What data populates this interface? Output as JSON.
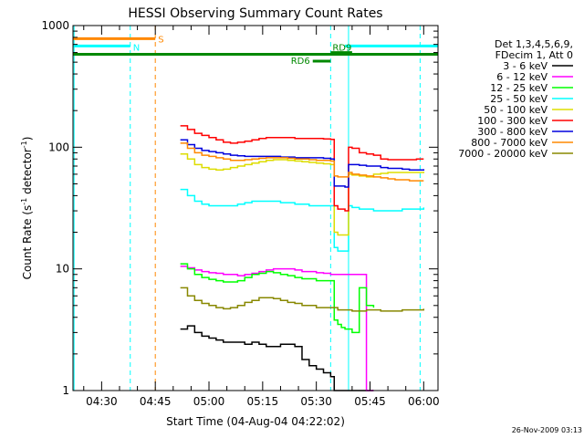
{
  "chart_data": {
    "type": "line",
    "title": "HESSI Observing Summary Count Rates",
    "xlabel": "Start Time (04-Aug-04 04:22:02)",
    "ylabel_main": "Count Rate (s",
    "ylabel_sup1": "-1",
    "ylabel_mid": " detector",
    "ylabel_sup2": "-1",
    "ylabel_end": ")",
    "ylim": [
      1,
      1000
    ],
    "yscale": "log",
    "xlim_min": [
      0,
      102
    ],
    "xtick_labels": [
      "04:30",
      "04:45",
      "05:00",
      "05:15",
      "05:30",
      "05:45",
      "06:00"
    ],
    "xtick_minutes": [
      8,
      23,
      38,
      53,
      68,
      83,
      98
    ],
    "ytick_labels": [
      "1",
      "10",
      "100",
      "1000"
    ],
    "ytick_values": [
      1,
      10,
      100,
      1000
    ],
    "timestamp": "26-Nov-2009 03:13",
    "legend_header": [
      "Det 1,3,4,5,6,9,",
      "FDecim 1, Att 0"
    ],
    "series": [
      {
        "name": "3 - 6 keV",
        "color": "#000000",
        "x": [
          30,
          32,
          34,
          36,
          38,
          40,
          42,
          44,
          46,
          48,
          50,
          52,
          54,
          56,
          58,
          60,
          62,
          64,
          66,
          68,
          70,
          72,
          73,
          74,
          76,
          78,
          80,
          82,
          84
        ],
        "y": [
          3.2,
          3.4,
          3.0,
          2.8,
          2.7,
          2.6,
          2.5,
          2.5,
          2.5,
          2.4,
          2.5,
          2.4,
          2.3,
          2.3,
          2.4,
          2.4,
          2.3,
          1.8,
          1.6,
          1.5,
          1.4,
          1.3,
          1.0,
          1.0,
          1.0,
          1.0,
          1.0,
          1.0,
          1.0
        ]
      },
      {
        "name": "6 - 12 keV",
        "color": "#ff00ff",
        "x": [
          30,
          32,
          34,
          36,
          38,
          40,
          42,
          44,
          46,
          48,
          50,
          52,
          54,
          56,
          58,
          60,
          62,
          64,
          66,
          68,
          70,
          72,
          74,
          76,
          78,
          80,
          82,
          84
        ],
        "y": [
          10.5,
          10.2,
          9.8,
          9.5,
          9.3,
          9.2,
          9.0,
          9.0,
          8.8,
          9.0,
          9.2,
          9.5,
          9.8,
          10.0,
          10.0,
          10.0,
          9.8,
          9.5,
          9.5,
          9.3,
          9.2,
          9.0,
          9.0,
          9.0,
          9.0,
          9.0,
          1.0,
          1.0
        ]
      },
      {
        "name": "12 - 25 keV",
        "color": "#00ff00",
        "x": [
          30,
          32,
          34,
          36,
          38,
          40,
          42,
          44,
          46,
          48,
          50,
          52,
          54,
          56,
          58,
          60,
          62,
          64,
          66,
          68,
          70,
          72,
          73,
          74,
          75,
          76,
          78,
          80,
          82,
          84
        ],
        "y": [
          11.0,
          10.0,
          9.0,
          8.5,
          8.2,
          8.0,
          7.8,
          7.8,
          8.0,
          8.5,
          9.0,
          9.2,
          9.5,
          9.3,
          9.0,
          8.8,
          8.5,
          8.3,
          8.3,
          8.0,
          8.0,
          8.0,
          3.8,
          3.5,
          3.3,
          3.2,
          3.0,
          7.0,
          5.0,
          4.8
        ]
      },
      {
        "name": "25 - 50 keV",
        "color": "#00ffff",
        "x": [
          30,
          32,
          34,
          36,
          38,
          40,
          42,
          44,
          46,
          48,
          50,
          52,
          54,
          56,
          58,
          60,
          62,
          64,
          66,
          68,
          70,
          72,
          73,
          74,
          76,
          77,
          78,
          80,
          82,
          84,
          86,
          88,
          90,
          92,
          94,
          96,
          98
        ],
        "y": [
          45,
          40,
          36,
          34,
          33,
          33,
          33,
          33,
          34,
          35,
          36,
          36,
          36,
          36,
          35,
          35,
          34,
          34,
          33,
          33,
          33,
          33,
          15,
          14,
          14,
          33,
          32,
          31,
          31,
          30,
          30,
          30,
          30,
          31,
          31,
          31,
          32
        ]
      },
      {
        "name": "50 - 100 keV",
        "color": "#dddd00",
        "x": [
          30,
          32,
          34,
          36,
          38,
          40,
          42,
          44,
          46,
          48,
          50,
          52,
          54,
          56,
          58,
          60,
          62,
          64,
          66,
          68,
          70,
          72,
          73,
          74,
          76,
          77,
          78,
          80,
          82,
          84,
          86,
          88,
          90,
          92,
          94,
          96,
          98
        ],
        "y": [
          88,
          80,
          72,
          68,
          66,
          65,
          66,
          68,
          70,
          72,
          74,
          76,
          78,
          79,
          79,
          78,
          77,
          76,
          75,
          74,
          73,
          72,
          20,
          19,
          19,
          60,
          59,
          58,
          57,
          60,
          61,
          62,
          62,
          62,
          62,
          62,
          63
        ]
      },
      {
        "name": "100 - 300 keV",
        "color": "#ff0000",
        "x": [
          30,
          32,
          34,
          36,
          38,
          40,
          42,
          44,
          46,
          48,
          50,
          52,
          54,
          56,
          58,
          60,
          62,
          64,
          66,
          68,
          70,
          72,
          73,
          74,
          76,
          77,
          78,
          80,
          82,
          84,
          86,
          88,
          90,
          92,
          94,
          96,
          98
        ],
        "y": [
          150,
          140,
          130,
          125,
          120,
          115,
          110,
          108,
          110,
          112,
          115,
          118,
          120,
          120,
          120,
          120,
          118,
          118,
          118,
          118,
          117,
          116,
          33,
          31,
          30,
          100,
          98,
          90,
          88,
          86,
          80,
          79,
          79,
          79,
          79,
          80,
          80
        ]
      },
      {
        "name": "300 - 800 keV",
        "color": "#0000dd",
        "x": [
          30,
          32,
          34,
          36,
          38,
          40,
          42,
          44,
          46,
          48,
          50,
          52,
          54,
          56,
          58,
          60,
          62,
          64,
          66,
          68,
          70,
          72,
          73,
          74,
          76,
          77,
          78,
          80,
          82,
          84,
          86,
          88,
          90,
          92,
          94,
          96,
          98
        ],
        "y": [
          115,
          105,
          98,
          94,
          92,
          90,
          88,
          86,
          85,
          84,
          84,
          84,
          84,
          84,
          83,
          83,
          82,
          82,
          82,
          82,
          81,
          80,
          48,
          48,
          47,
          72,
          72,
          71,
          70,
          70,
          68,
          67,
          67,
          66,
          65,
          65,
          66
        ]
      },
      {
        "name": "800 - 7000 keV",
        "color": "#ff8800",
        "x": [
          30,
          32,
          34,
          36,
          38,
          40,
          42,
          44,
          46,
          48,
          50,
          52,
          54,
          56,
          58,
          60,
          62,
          64,
          66,
          68,
          70,
          72,
          73,
          74,
          76,
          77,
          78,
          80,
          82,
          84,
          86,
          88,
          90,
          92,
          94,
          96,
          98
        ],
        "y": [
          108,
          98,
          90,
          86,
          84,
          82,
          80,
          78,
          78,
          79,
          80,
          81,
          82,
          82,
          82,
          81,
          80,
          80,
          79,
          78,
          78,
          77,
          58,
          57,
          57,
          62,
          60,
          59,
          58,
          57,
          56,
          55,
          54,
          54,
          53,
          53,
          53
        ]
      },
      {
        "name": "7000 - 20000 keV",
        "color": "#888800",
        "x": [
          30,
          32,
          34,
          36,
          38,
          40,
          42,
          44,
          46,
          48,
          50,
          52,
          54,
          56,
          58,
          60,
          62,
          64,
          66,
          68,
          70,
          72,
          74,
          76,
          78,
          80,
          82,
          84,
          86,
          88,
          90,
          92,
          94,
          96,
          98
        ],
        "y": [
          7.0,
          6.0,
          5.5,
          5.2,
          5.0,
          4.8,
          4.7,
          4.8,
          5.0,
          5.3,
          5.5,
          5.8,
          5.8,
          5.7,
          5.5,
          5.3,
          5.2,
          5.0,
          5.0,
          4.8,
          4.8,
          4.8,
          4.6,
          4.6,
          4.5,
          4.5,
          4.6,
          4.6,
          4.5,
          4.5,
          4.5,
          4.6,
          4.6,
          4.6,
          4.7
        ]
      }
    ],
    "segments": [
      {
        "label": "S",
        "color": "#ff8800",
        "x_start": 0,
        "x_end": 23,
        "y": 780
      },
      {
        "label": "N",
        "color": "#00ffff",
        "x_start": 0,
        "x_end": 16,
        "y": 680
      },
      {
        "label": "",
        "color": "#00ffff",
        "x_start": 76,
        "x_end": 102,
        "y": 680
      },
      {
        "label": "",
        "color": "#008800",
        "x_start": 0,
        "x_end": 102,
        "y": 580
      },
      {
        "label": "RD6",
        "color": "#008800",
        "x_start": 67,
        "x_end": 72,
        "y": 510
      },
      {
        "label": "RD9",
        "color": "#008800",
        "x_start": 72,
        "x_end": 78,
        "y": 600
      }
    ],
    "vlines": [
      {
        "x": 0.3,
        "color": "#00ffff",
        "dash": false
      },
      {
        "x": 16,
        "color": "#00ffff",
        "dash": true
      },
      {
        "x": 23,
        "color": "#ff8800",
        "dash": true
      },
      {
        "x": 72,
        "color": "#00ffff",
        "dash": true
      },
      {
        "x": 77,
        "color": "#00ffff",
        "dash": false
      },
      {
        "x": 97,
        "color": "#00ffff",
        "dash": true
      }
    ],
    "grid": false,
    "legend_position": "right"
  }
}
